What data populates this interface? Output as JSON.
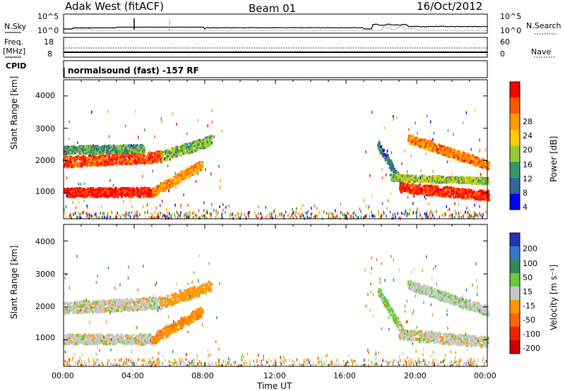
{
  "header": {
    "station": "Adak West (fitACF)",
    "beam": "Beam 01",
    "date": "16/Oct/2012"
  },
  "top_panels": {
    "nsky_label": "N.Sky",
    "nsky_ticks": [
      "10^5",
      "10^0"
    ],
    "nsearch_label": "N.Search",
    "nsearch_ticks": [
      "10^5",
      "10^0"
    ],
    "freq_label": "Freq.",
    "freq_unit": "[MHz]",
    "freq_ticks": [
      "18",
      "8"
    ],
    "nave_label": "Nave",
    "nave_ticks": [
      "60",
      "0"
    ],
    "cpid_label": "CPID",
    "cpid_value": "normalsound (fast) -157 RF"
  },
  "axes": {
    "ylabel": "Slant Range [km]",
    "xlabel": "Time UT",
    "y_ticks": [
      "4000",
      "3000",
      "2000",
      "1000"
    ],
    "x_ticks": [
      "00:00",
      "04:00",
      "08:00",
      "12:00",
      "16:00",
      "20:00",
      "00:00"
    ]
  },
  "power_scale": {
    "label": "Power [dB]",
    "ticks": [
      "28",
      "24",
      "20",
      "16",
      "12",
      "8",
      "4"
    ],
    "colors": [
      "#ff0000",
      "#ff5500",
      "#ff9900",
      "#ffcc00",
      "#99cc33",
      "#339966",
      "#336699",
      "#0000ff"
    ]
  },
  "velocity_scale": {
    "label": "Velocity [m s⁻¹]",
    "ticks": [
      "200",
      "100",
      "50",
      "15",
      "-15",
      "-50",
      "-100",
      "-200"
    ],
    "colors": [
      "#2233bb",
      "#3377cc",
      "#2e8b57",
      "#66cc33",
      "#c8c8c8",
      "#ff9900",
      "#ff6600",
      "#ee2200",
      "#cc0000"
    ]
  },
  "chart_data": [
    {
      "type": "heatmap",
      "name": "power",
      "xlabel": "Time UT",
      "ylabel": "Slant Range [km]",
      "xlim": [
        0,
        24
      ],
      "ylim": [
        200,
        4500
      ],
      "clim": [
        0,
        30
      ],
      "bands": [
        {
          "t_start": 0.0,
          "t_end": 5.0,
          "range_start": 1050,
          "range_end": 1050,
          "width": 140,
          "value": 28
        },
        {
          "t_start": 5.0,
          "t_end": 7.8,
          "range_start": 1050,
          "range_end": 1900,
          "width": 140,
          "value": 20
        },
        {
          "t_start": 0.0,
          "t_end": 5.5,
          "range_start": 2000,
          "range_end": 2150,
          "width": 170,
          "value": 25
        },
        {
          "t_start": 5.5,
          "t_end": 8.3,
          "range_start": 2150,
          "range_end": 2650,
          "width": 160,
          "value": 12
        },
        {
          "t_start": 0.0,
          "t_end": 4.5,
          "range_start": 2350,
          "range_end": 2400,
          "width": 120,
          "value": 10
        },
        {
          "t_start": 17.8,
          "t_end": 19.2,
          "range_start": 2500,
          "range_end": 1250,
          "width": 120,
          "value": 8
        },
        {
          "t_start": 19.0,
          "t_end": 24.0,
          "range_start": 1200,
          "range_end": 950,
          "width": 150,
          "value": 27
        },
        {
          "t_start": 19.5,
          "t_end": 24.0,
          "range_start": 2700,
          "range_end": 1900,
          "width": 140,
          "value": 22
        },
        {
          "t_start": 18.5,
          "t_end": 24.0,
          "range_start": 1500,
          "range_end": 1400,
          "width": 100,
          "value": 14
        }
      ],
      "ground_scatter_range": [
        250,
        450
      ]
    },
    {
      "type": "heatmap",
      "name": "velocity",
      "xlabel": "Time UT",
      "ylabel": "Slant Range [km]",
      "xlim": [
        0,
        24
      ],
      "ylim": [
        200,
        4500
      ],
      "clim": [
        -200,
        200
      ],
      "bands": [
        {
          "t_start": 0.0,
          "t_end": 5.0,
          "range_start": 1050,
          "range_end": 1050,
          "width": 150,
          "value": 0
        },
        {
          "t_start": 5.0,
          "t_end": 7.8,
          "range_start": 1050,
          "range_end": 1900,
          "width": 150,
          "value": -40
        },
        {
          "t_start": 0.0,
          "t_end": 5.5,
          "range_start": 2000,
          "range_end": 2150,
          "width": 180,
          "value": 0
        },
        {
          "t_start": 5.5,
          "t_end": 8.3,
          "range_start": 2150,
          "range_end": 2650,
          "width": 160,
          "value": -30
        },
        {
          "t_start": 17.8,
          "t_end": 19.2,
          "range_start": 2500,
          "range_end": 1250,
          "width": 120,
          "value": 25
        },
        {
          "t_start": 19.0,
          "t_end": 24.0,
          "range_start": 1200,
          "range_end": 950,
          "width": 160,
          "value": 0
        },
        {
          "t_start": 19.5,
          "t_end": 24.0,
          "range_start": 2700,
          "range_end": 1900,
          "width": 140,
          "value": 5
        }
      ],
      "ground_scatter_range": [
        250,
        450
      ]
    }
  ]
}
